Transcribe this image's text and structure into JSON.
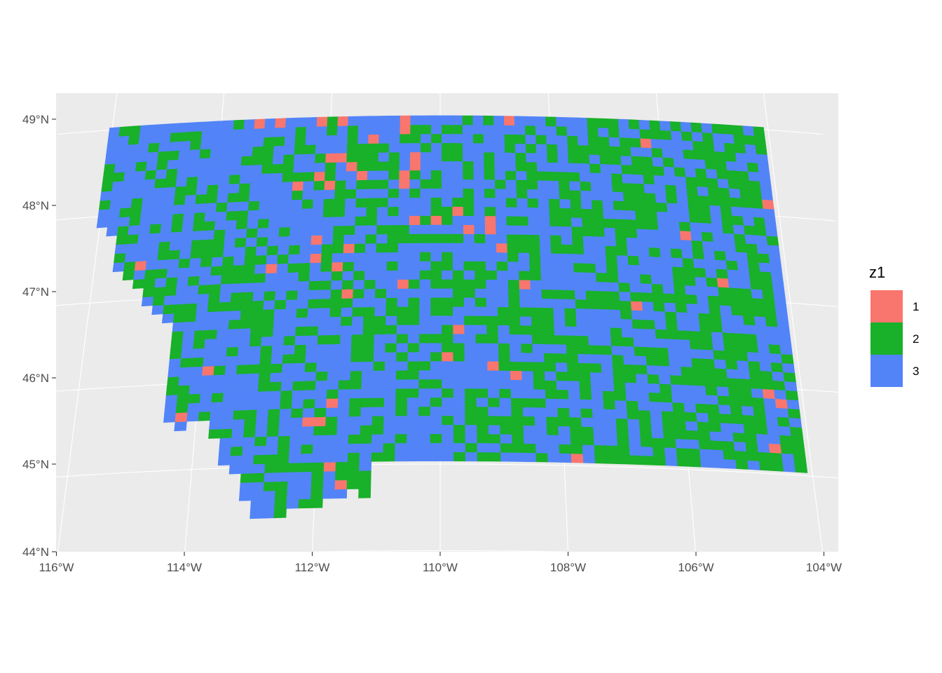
{
  "chart_data": {
    "type": "heatmap",
    "title": "",
    "xlabel": "",
    "ylabel": "",
    "x_ticks": [
      "116°W",
      "114°W",
      "112°W",
      "110°W",
      "108°W",
      "106°W",
      "104°W"
    ],
    "y_ticks": [
      "44°N",
      "45°N",
      "46°N",
      "47°N",
      "48°N",
      "49°N"
    ],
    "xlim": [
      -116.0,
      -103.6
    ],
    "ylim": [
      44.0,
      49.2
    ],
    "grid": true,
    "legend": {
      "title": "z1",
      "placement": "right",
      "entries": [
        {
          "label": "1",
          "color": "#F8766D"
        },
        {
          "label": "2",
          "color": "#19B02A"
        },
        {
          "label": "3",
          "color": "#5284F8"
        }
      ]
    },
    "categories": [
      "1",
      "2",
      "3"
    ],
    "class_proportions": {
      "1": 0.03,
      "2": 0.4,
      "3": 0.57
    },
    "region": "Montana raster grid, categorical values 1–3",
    "notable_class1_clusters": [
      {
        "lon": -112.2,
        "lat": 48.4
      },
      {
        "lon": -111.0,
        "lat": 48.6
      },
      {
        "lon": -109.4,
        "lat": 47.7
      },
      {
        "lon": -112.2,
        "lat": 45.5
      }
    ]
  }
}
